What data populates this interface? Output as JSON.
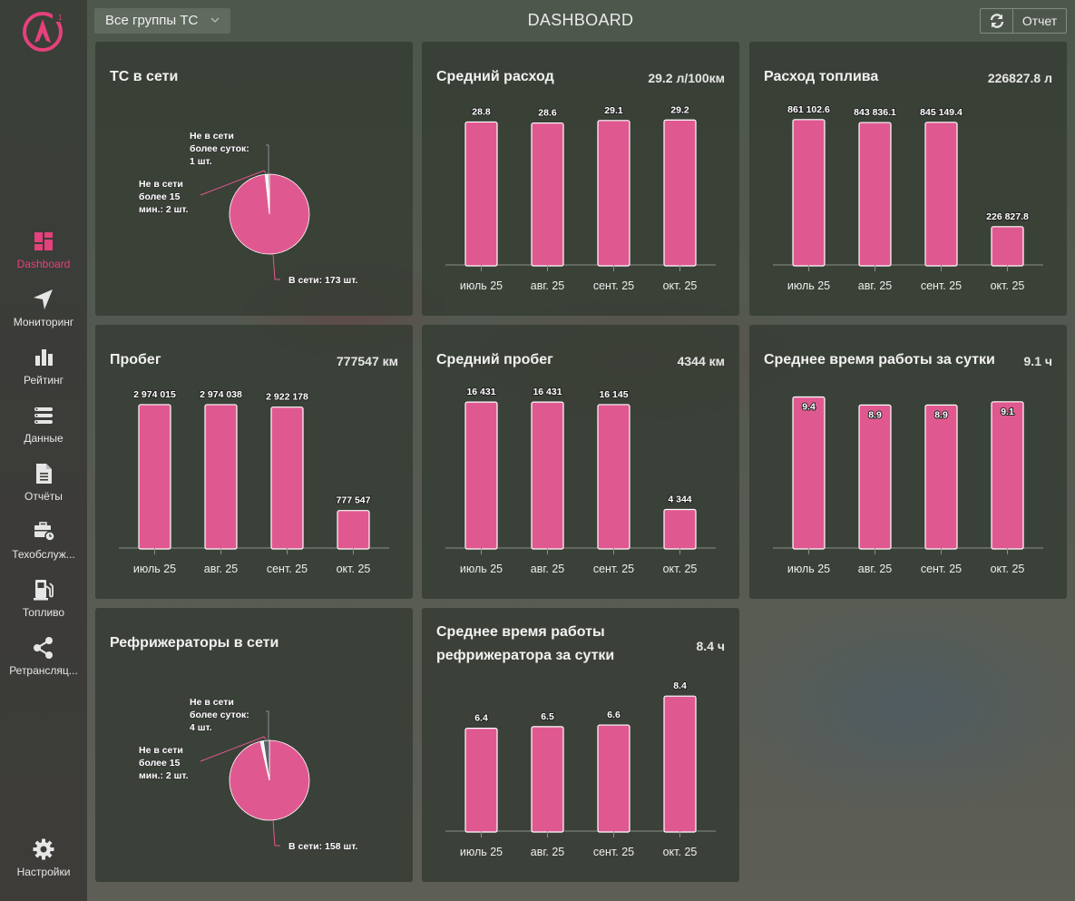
{
  "app": {
    "title": "DASHBOARD",
    "brand_color": "#e4417d",
    "bar_color": "#df5990"
  },
  "topbar": {
    "group_select": "Все группы ТС",
    "refresh_icon": "refresh-icon",
    "report_label": "Отчет"
  },
  "sidebar": {
    "items": [
      {
        "label": "Dashboard",
        "icon": "dashboard-icon",
        "active": true
      },
      {
        "label": "Мониторинг",
        "icon": "navigation-arrow-icon"
      },
      {
        "label": "Рейтинг",
        "icon": "bar-chart-icon"
      },
      {
        "label": "Данные",
        "icon": "list-icon"
      },
      {
        "label": "Отчёты",
        "icon": "document-icon"
      },
      {
        "label": "Техобслуж...",
        "icon": "briefcase-clock-icon"
      },
      {
        "label": "Топливо",
        "icon": "fuel-pump-icon"
      },
      {
        "label": "Ретрансляц...",
        "icon": "share-icon"
      }
    ],
    "settings": {
      "label": "Настройки",
      "icon": "gear-icon"
    }
  },
  "cards": {
    "online": {
      "title": "ТС в сети"
    },
    "avg_consumption": {
      "title": "Средний расход",
      "value": "29.2 л/100км"
    },
    "fuel": {
      "title": "Расход топлива",
      "value": "226827.8 л"
    },
    "mileage": {
      "title": "Пробег",
      "value": "777547 км"
    },
    "avg_mileage": {
      "title": "Средний пробег",
      "value": "4344 км"
    },
    "work_time": {
      "title": "Среднее время работы за сутки",
      "value": "9.1 ч"
    },
    "fridge_online": {
      "title": "Рефрижераторы в сети"
    },
    "fridge_time": {
      "title_line1": "Среднее время работы",
      "title_line2": "рефрижератора за сутки",
      "value": "8.4 ч"
    }
  },
  "chart_data": [
    {
      "id": "online",
      "type": "pie",
      "title": "ТС в сети",
      "slices": [
        {
          "label": "В сети: 173 шт.",
          "lines": [
            "В сети: 173 шт."
          ],
          "value": 173,
          "color": "#df5990"
        },
        {
          "label": "Не в сети более 15 мин.: 2 шт.",
          "lines": [
            "Не в сети",
            "более 15",
            "мин.: 2 шт."
          ],
          "value": 2,
          "color": "#f4f4f4"
        },
        {
          "label": "Не в сети более суток: 1 шт.",
          "lines": [
            "Не в сети",
            "более суток:",
            "1 шт."
          ],
          "value": 1,
          "color": "#5b6268"
        }
      ]
    },
    {
      "id": "avg_consumption",
      "type": "bar",
      "title": "Средний расход",
      "categories": [
        "июль 25",
        "авг. 25",
        "сент. 25",
        "окт. 25"
      ],
      "values": [
        28.8,
        28.6,
        29.1,
        29.2
      ],
      "labels": [
        "28.8",
        "28.6",
        "29.1",
        "29.2"
      ],
      "ylim": [
        0,
        34
      ],
      "label_inside": false
    },
    {
      "id": "fuel",
      "type": "bar",
      "title": "Расход топлива",
      "categories": [
        "июль 25",
        "авг. 25",
        "сент. 25",
        "окт. 25"
      ],
      "values": [
        861102.6,
        843836.1,
        845149.4,
        226827.8
      ],
      "labels": [
        "861 102.6",
        "843 836.1",
        "845 149.4",
        "226 827.8"
      ],
      "ylim": [
        0,
        1000000
      ],
      "label_inside": false
    },
    {
      "id": "mileage",
      "type": "bar",
      "title": "Пробег",
      "categories": [
        "июль 25",
        "авг. 25",
        "сент. 25",
        "окт. 25"
      ],
      "values": [
        2974015,
        2974038,
        2922178,
        777547
      ],
      "labels": [
        "2 974 015",
        "2 974 038",
        "2 922 178",
        "777 547"
      ],
      "ylim": [
        0,
        3500000
      ],
      "label_inside": false
    },
    {
      "id": "avg_mileage",
      "type": "bar",
      "title": "Средний пробег",
      "categories": [
        "июль 25",
        "авг. 25",
        "сент. 25",
        "окт. 25"
      ],
      "values": [
        16431,
        16431,
        16145,
        4344
      ],
      "labels": [
        "16 431",
        "16 431",
        "16 145",
        "4 344"
      ],
      "ylim": [
        0,
        19000
      ],
      "label_inside": false
    },
    {
      "id": "work_time",
      "type": "bar",
      "title": "Среднее время работы за сутки",
      "categories": [
        "июль 25",
        "авг. 25",
        "сент. 25",
        "окт. 25"
      ],
      "values": [
        9.4,
        8.9,
        8.9,
        9.1
      ],
      "labels": [
        "9.4",
        "8.9",
        "8.9",
        "9.1"
      ],
      "ylim": [
        0,
        10.5
      ],
      "label_inside": true
    },
    {
      "id": "fridge_online",
      "type": "pie",
      "title": "Рефрижераторы в сети",
      "slices": [
        {
          "label": "В сети: 158 шт.",
          "lines": [
            "В сети: 158 шт."
          ],
          "value": 158,
          "color": "#df5990"
        },
        {
          "label": "Не в сети более 15 мин.: 2 шт.",
          "lines": [
            "Не в сети",
            "более 15",
            "мин.: 2 шт."
          ],
          "value": 2,
          "color": "#f4f4f4"
        },
        {
          "label": "Не в сети более суток: 4 шт.",
          "lines": [
            "Не в сети",
            "более суток:",
            "4 шт."
          ],
          "value": 4,
          "color": "#5b6268"
        }
      ]
    },
    {
      "id": "fridge_time",
      "type": "bar",
      "title": "Среднее время работы рефрижератора за сутки",
      "categories": [
        "июль 25",
        "авг. 25",
        "сент. 25",
        "окт. 25"
      ],
      "values": [
        6.4,
        6.5,
        6.6,
        8.4
      ],
      "labels": [
        "6.4",
        "6.5",
        "6.6",
        "8.4"
      ],
      "ylim": [
        0,
        10.5
      ],
      "label_inside": false
    }
  ]
}
